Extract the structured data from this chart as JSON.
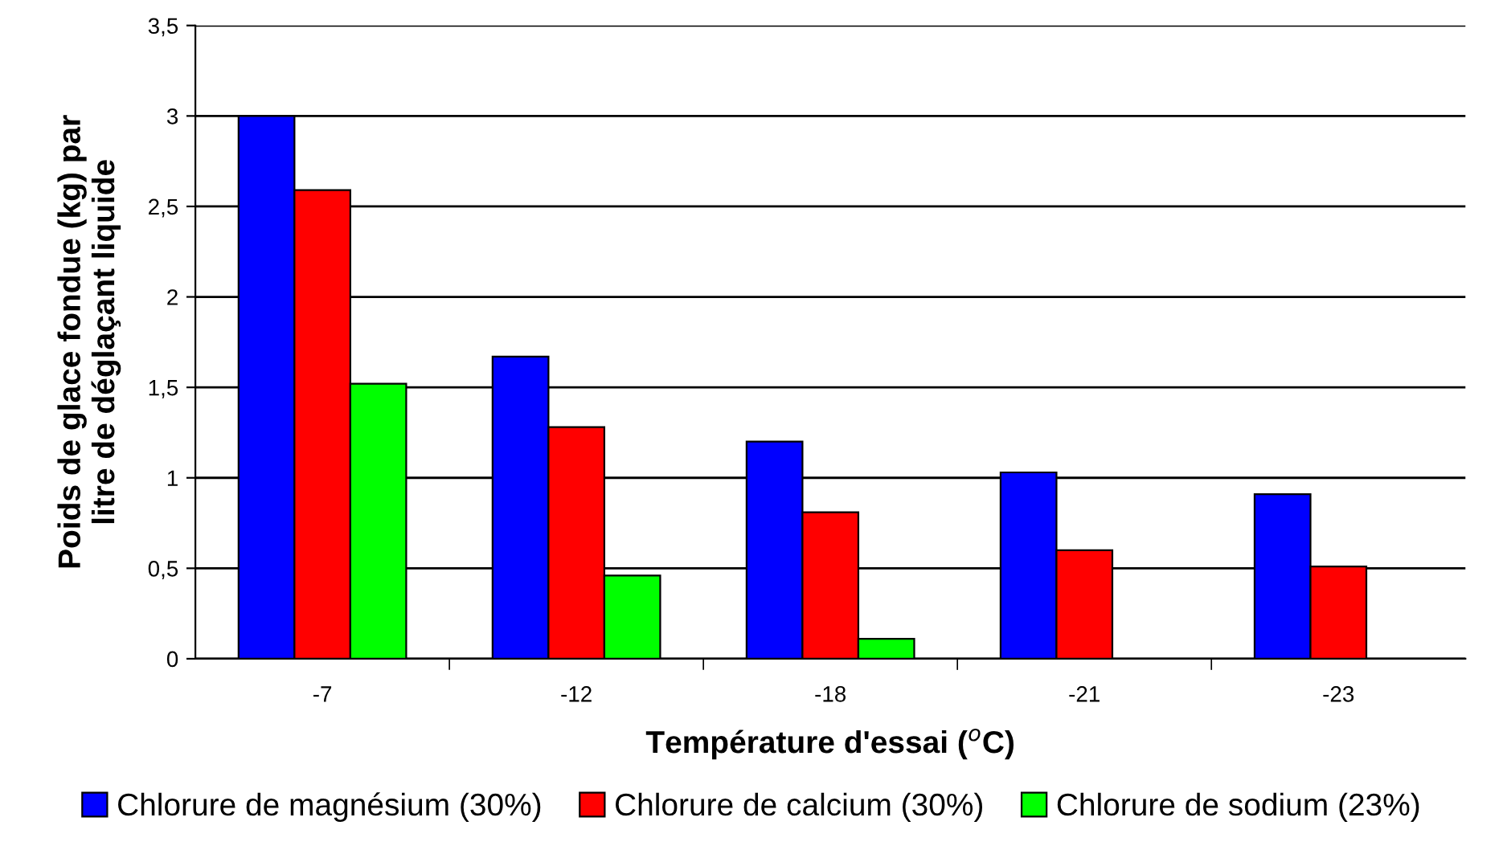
{
  "chart_data": {
    "type": "bar",
    "xlabel": "Température d'essai ($^{o}$C)",
    "ylabel": "Poids de glace fondue (kg) par\nlitre de déglaçant liquide",
    "categories": [
      "-7",
      "-12",
      "-18",
      "-21",
      "-23"
    ],
    "series": [
      {
        "name": "Chlorure de magnésium (30%)",
        "color": "#0000ff",
        "values": [
          3.0,
          1.67,
          1.2,
          1.03,
          0.91
        ]
      },
      {
        "name": "Chlorure de calcium (30%)",
        "color": "#ff0000",
        "values": [
          2.59,
          1.28,
          0.81,
          0.6,
          0.51
        ]
      },
      {
        "name": "Chlorure de sodium (23%)",
        "color": "#00ff00",
        "values": [
          1.52,
          0.46,
          0.11,
          null,
          null
        ]
      }
    ],
    "ylim": [
      0,
      3.5
    ],
    "yticks": [
      0,
      {
        "value": 0.5,
        "label": "0,5"
      },
      1,
      {
        "value": 1.5,
        "label": "1,5"
      },
      2,
      {
        "value": 2.5,
        "label": "2,5"
      },
      3,
      {
        "value": 3.5,
        "label": "3,5"
      }
    ],
    "grid": "y",
    "legend": "bottom"
  }
}
